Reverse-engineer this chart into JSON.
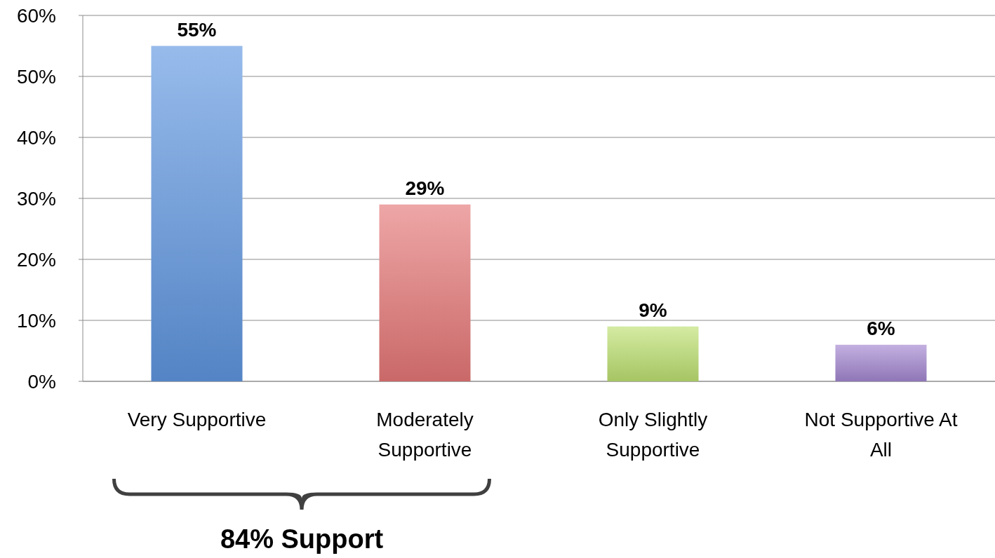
{
  "chart_data": {
    "type": "bar",
    "categories": [
      "Very Supportive",
      "Moderately Supportive",
      "Only Slightly Supportive",
      "Not Supportive At All"
    ],
    "values": [
      55,
      29,
      9,
      6
    ],
    "colors": [
      "#5f96e0",
      "#e57676",
      "#bde070",
      "#a286d0"
    ],
    "value_labels": [
      "55%",
      "29%",
      "9%",
      "6%"
    ],
    "ylim": [
      0,
      60
    ],
    "yticks": [
      {
        "value": 0,
        "label": "0%"
      },
      {
        "value": 10,
        "label": "10%"
      },
      {
        "value": 20,
        "label": "20%"
      },
      {
        "value": 30,
        "label": "30%"
      },
      {
        "value": 40,
        "label": "40%"
      },
      {
        "value": 50,
        "label": "50%"
      },
      {
        "value": 60,
        "label": "60%"
      }
    ],
    "grid": "y",
    "annotations": [
      "84% Support"
    ]
  }
}
